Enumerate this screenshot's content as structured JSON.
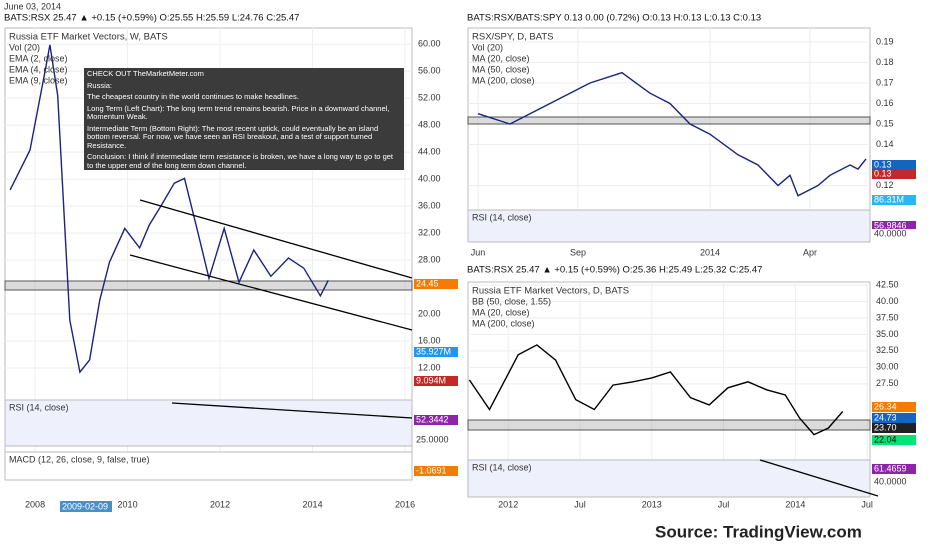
{
  "date": "June 03, 2014",
  "annotation": [
    "CHECK OUT TheMarketMeter.com",
    "Russia:",
    "The cheapest country in the world continues to make headlines.",
    "Long Term (Left Chart): The long term trend remains bearish. Price in a downward channel, Momentum Weak.",
    "Intermediate Term (Bottom Right): The most recent uptick, could eventually be an island bottom reversal. For now, we have seen an RSI breakout, and a test of support turned Resistance.",
    "Conclusion: I think if intermediate term resistance is broken, we have a long way to go to get to the upper end of the long term down channel."
  ],
  "source": "Source: TradingView.com",
  "chart_data": [
    {
      "type": "line",
      "header": "BATS:RSX 25.47 ▲ +0.15 (+0.59%) O:25.55 H:25.59 L:24.76 C:25.47",
      "title": "Russia ETF Market Vectors, W, BATS",
      "legend": [
        "Vol (20)",
        "EMA (2, close)",
        "EMA (4, close)",
        "EMA (9, close)"
      ],
      "color": "#1a237e",
      "x": [
        2007.46,
        2007.89,
        2008.22,
        2008.32,
        2008.49,
        2008.75,
        2008.97,
        2009.18,
        2009.4,
        2009.61,
        2009.94,
        2010.26,
        2010.47,
        2010.73,
        2011.01,
        2011.23,
        2011.51,
        2011.76,
        2012.09,
        2012.41,
        2012.73,
        2013.1,
        2013.48,
        2013.81,
        2014.17,
        2014.34
      ],
      "values": [
        38.4,
        44.3,
        56.1,
        59.9,
        52.4,
        19.1,
        11.4,
        13.2,
        22.1,
        27.7,
        32.7,
        29.8,
        33.2,
        36.1,
        39.4,
        40.1,
        32.4,
        25.3,
        32.7,
        24.7,
        29.5,
        25.6,
        28.3,
        26.8,
        22.7,
        25.0
      ],
      "xlim": [
        2007.35,
        2016.15
      ],
      "ylim": [
        8,
        62.4
      ],
      "xticks": [
        2008,
        2010,
        2012,
        2014,
        2016
      ],
      "yticks": [
        {
          "value": 60,
          "label": "60.00"
        },
        {
          "value": 56,
          "label": "56.00"
        },
        {
          "value": 52,
          "label": "52.00"
        },
        {
          "value": 48,
          "label": "48.00"
        },
        {
          "value": 44,
          "label": "44.00"
        },
        {
          "value": 40,
          "label": "40.00"
        },
        {
          "value": 36,
          "label": "36.00"
        },
        {
          "value": 32,
          "label": "32.00"
        },
        {
          "value": 28,
          "label": "28.00"
        },
        {
          "value": 20,
          "label": "20.00"
        },
        {
          "value": 16,
          "label": "16.00"
        },
        {
          "value": 12,
          "label": "12.00"
        }
      ],
      "badges": [
        {
          "text": "24.45",
          "color": "#f57c00"
        },
        {
          "text": "35.927M",
          "color": "#2196f3"
        },
        {
          "text": "9.094M",
          "color": "#c62828"
        }
      ],
      "date_tag": "2009-02-09",
      "subpanels": [
        {
          "label": "RSI (14, close)",
          "badges": [
            {
              "text": "52.3442",
              "color": "#8e24aa"
            },
            {
              "text": "25.0000",
              "color": "#ffffff"
            }
          ]
        },
        {
          "label": "MACD (12, 26, close, 9, false, true)",
          "badges": [
            {
              "text": "-1.0691",
              "color": "#f57c00"
            }
          ]
        }
      ]
    },
    {
      "type": "line",
      "header": "BATS:RSX/BATS:SPY 0.13 0.00 (0.72%) O:0.13 H:0.13 L:0.13 C:0.13",
      "title": "RSX/SPY, D, BATS",
      "legend": [
        "Vol (20)",
        "MA (20, close)",
        "MA (50, close)",
        "MA (200, close)"
      ],
      "color": "#1a237e",
      "x": [
        2013.42,
        2013.5,
        2013.6,
        2013.7,
        2013.78,
        2013.85,
        2013.9,
        2013.95,
        2014.0,
        2014.07,
        2014.12,
        2014.17,
        2014.2,
        2014.22,
        2014.27,
        2014.3,
        2014.35,
        2014.37,
        2014.39
      ],
      "values": [
        0.155,
        0.15,
        0.16,
        0.17,
        0.175,
        0.165,
        0.16,
        0.15,
        0.145,
        0.135,
        0.13,
        0.12,
        0.125,
        0.115,
        0.12,
        0.125,
        0.13,
        0.128,
        0.133
      ],
      "xlim": [
        2013.395,
        2014.4
      ],
      "ylim": [
        0.1105,
        0.1968
      ],
      "xticks": [
        {
          "value": 2013.42,
          "label": "Jun"
        },
        {
          "value": 2013.67,
          "label": "Sep"
        },
        2014,
        {
          "value": 2014.25,
          "label": "Apr"
        }
      ],
      "yticks": [
        0.19,
        0.18,
        0.17,
        0.16,
        0.15,
        0.14,
        0.12
      ],
      "badges": [
        {
          "text": "0.13",
          "color": "#1565c0"
        },
        {
          "text": "0.13",
          "color": "#c62828"
        },
        {
          "text": "86.31M",
          "color": "#29b6f6"
        }
      ],
      "subpanels": [
        {
          "label": "RSI (14, close)",
          "badges": [
            {
              "text": "56.9846",
              "color": "#8e24aa"
            },
            {
              "text": "40.0000",
              "color": "#ffffff"
            }
          ]
        }
      ]
    },
    {
      "type": "line",
      "header": "BATS:RSX 25.47 ▲ +0.15 (+0.59%) O:25.36 H:25.49 L:25.32 C:25.47",
      "title": "Russia ETF Market Vectors, D, BATS",
      "legend": [
        "BB (50, close, 1.55)",
        "MA (20, close)",
        "MA (200, close)"
      ],
      "color": "#000000",
      "x": [
        2011.73,
        2011.87,
        2012.07,
        2012.2,
        2012.33,
        2012.47,
        2012.6,
        2012.73,
        2012.87,
        2013.0,
        2013.13,
        2013.27,
        2013.4,
        2013.53,
        2013.67,
        2013.8,
        2013.93,
        2014.03,
        2014.13,
        2014.23,
        2014.33
      ],
      "values": [
        28.1,
        23.6,
        31.9,
        33.4,
        31.1,
        25.1,
        23.6,
        27.3,
        27.8,
        28.4,
        29.3,
        25.4,
        24.3,
        26.9,
        27.8,
        26.6,
        25.8,
        22.3,
        19.8,
        20.8,
        23.3
      ],
      "xlim": [
        2011.72,
        2014.52
      ],
      "ylim": [
        16.7,
        42.95
      ],
      "xticks": [
        2012,
        {
          "value": 2012.5,
          "label": "Jul"
        },
        2013,
        {
          "value": 2013.5,
          "label": "Jul"
        },
        2014,
        {
          "value": 2014.5,
          "label": "Jul"
        }
      ],
      "yticks": [
        {
          "value": 42.5,
          "label": "42.50"
        },
        {
          "value": 40,
          "label": "40.00"
        },
        {
          "value": 37.5,
          "label": "37.50"
        },
        {
          "value": 35,
          "label": "35.00"
        },
        {
          "value": 32.5,
          "label": "32.50"
        },
        {
          "value": 30,
          "label": "30.00"
        },
        {
          "value": 27.5,
          "label": "27.50"
        }
      ],
      "badges": [
        {
          "text": "26.34",
          "color": "#f57c00"
        },
        {
          "text": "24.73",
          "color": "#1565c0"
        },
        {
          "text": "23.70",
          "color": "#212121"
        },
        {
          "text": "22.04",
          "color": "#00e676"
        }
      ],
      "subpanels": [
        {
          "label": "RSI (14, close)",
          "badges": [
            {
              "text": "61.4659",
              "color": "#8e24aa"
            },
            {
              "text": "40.0000",
              "color": "#ffffff"
            }
          ]
        }
      ]
    }
  ]
}
